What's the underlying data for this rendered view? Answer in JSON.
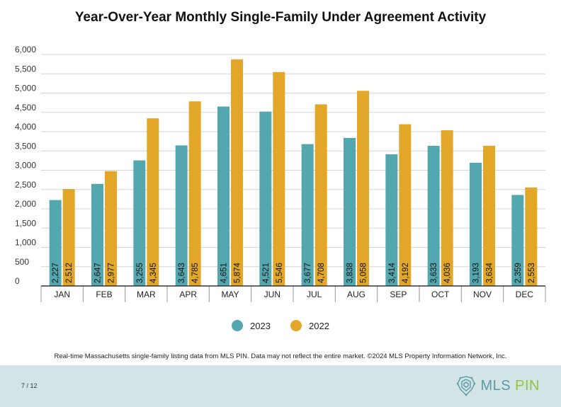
{
  "title": "Year-Over-Year Monthly Single-Family Under Agreement Activity",
  "legend": [
    {
      "label": "2023",
      "color": "#54a7ae"
    },
    {
      "label": "2022",
      "color": "#e2a628"
    }
  ],
  "disclaimer": "Real-time Massachusetts single-family listing data from MLS PIN. Data may not reflect the entire market. ©2024 MLS Property Information Network, Inc.",
  "page_number": "7 / 12",
  "brand": {
    "name_main": "MLS ",
    "name_accent": "PIN",
    "logo_icon": "mls-pin-logo-icon"
  },
  "chart_data": {
    "type": "bar",
    "title": "Year-Over-Year Monthly Single-Family Under Agreement Activity",
    "categories": [
      "JAN",
      "FEB",
      "MAR",
      "APR",
      "MAY",
      "JUN",
      "JUL",
      "AUG",
      "SEP",
      "OCT",
      "NOV",
      "DEC"
    ],
    "series": [
      {
        "name": "2023",
        "color": "#54a7ae",
        "values": [
          2227,
          2647,
          3255,
          3643,
          4651,
          4521,
          3677,
          3838,
          3414,
          3633,
          3193,
          2359
        ],
        "labels": [
          "2,227",
          "2,647",
          "3,255",
          "3,643",
          "4,651",
          "4,521",
          "3,677",
          "3,838",
          "3,414",
          "3,633",
          "3,193",
          "2,359"
        ]
      },
      {
        "name": "2022",
        "color": "#e2a628",
        "values": [
          2512,
          2977,
          4345,
          4785,
          5874,
          5546,
          4708,
          5058,
          4192,
          4036,
          3634,
          2553
        ],
        "labels": [
          "2,512",
          "2,977",
          "4,345",
          "4,785",
          "5,874",
          "5,546",
          "4,708",
          "5,058",
          "4,192",
          "4,036",
          "3,634",
          "2,553"
        ]
      }
    ],
    "yticks": [
      "0",
      "500",
      "1,000",
      "1,500",
      "2,000",
      "2,500",
      "3,000",
      "3,500",
      "4,000",
      "4,500",
      "5,000",
      "5,500",
      "6,000"
    ],
    "ylim": [
      0,
      6000
    ],
    "grid": true,
    "data_labels": "inside-bar-rotated",
    "legend_position": "bottom"
  }
}
